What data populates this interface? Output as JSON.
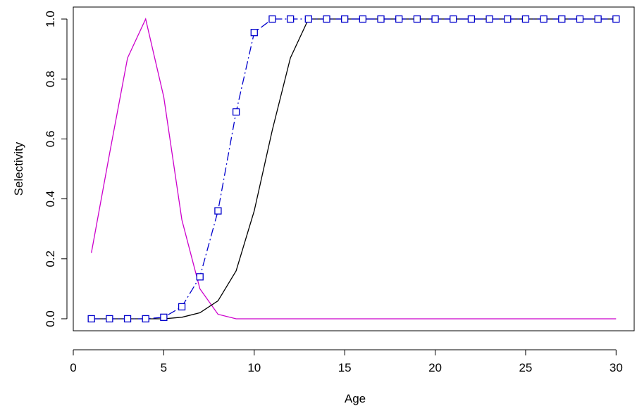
{
  "chart_data": {
    "type": "line",
    "xlabel": "Age",
    "ylabel": "Selectivity",
    "xlim": [
      0,
      31
    ],
    "ylim": [
      -0.04,
      1.04
    ],
    "x_ticks": [
      0,
      5,
      10,
      15,
      20,
      25,
      30
    ],
    "y_ticks": [
      0.0,
      0.2,
      0.4,
      0.6,
      0.8,
      1.0
    ],
    "x_tick_labels": [
      "0",
      "5",
      "10",
      "15",
      "20",
      "25",
      "30"
    ],
    "y_tick_labels": [
      "0.0",
      "0.2",
      "0.4",
      "0.6",
      "0.8",
      "1.0"
    ],
    "grid": false,
    "legend": "none",
    "x": [
      1,
      2,
      3,
      4,
      5,
      6,
      7,
      8,
      9,
      10,
      11,
      12,
      13,
      14,
      15,
      16,
      17,
      18,
      19,
      20,
      21,
      22,
      23,
      24,
      25,
      26,
      27,
      28,
      29,
      30
    ],
    "series": [
      {
        "color": "#cc00cc",
        "style": "line",
        "values": [
          0.22,
          0.55,
          0.87,
          1.0,
          0.74,
          0.33,
          0.1,
          0.015,
          0.0,
          0.0,
          0.0,
          0.0,
          0.0,
          0.0,
          0.0,
          0.0,
          0.0,
          0.0,
          0.0,
          0.0,
          0.0,
          0.0,
          0.0,
          0.0,
          0.0,
          0.0,
          0.0,
          0.0,
          0.0,
          0.0
        ]
      },
      {
        "color": "#000000",
        "style": "line",
        "values": [
          0.0,
          0.0,
          0.0,
          0.0,
          0.0,
          0.005,
          0.02,
          0.06,
          0.16,
          0.36,
          0.63,
          0.87,
          1.0,
          1.0,
          1.0,
          1.0,
          1.0,
          1.0,
          1.0,
          1.0,
          1.0,
          1.0,
          1.0,
          1.0,
          1.0,
          1.0,
          1.0,
          1.0,
          1.0,
          1.0
        ]
      },
      {
        "color": "#0000cc",
        "style": "line-dashdot-squares",
        "values": [
          0.0,
          0.0,
          0.0,
          0.0,
          0.005,
          0.04,
          0.14,
          0.36,
          0.69,
          0.955,
          1.0,
          1.0,
          1.0,
          1.0,
          1.0,
          1.0,
          1.0,
          1.0,
          1.0,
          1.0,
          1.0,
          1.0,
          1.0,
          1.0,
          1.0,
          1.0,
          1.0,
          1.0,
          1.0,
          1.0
        ]
      }
    ]
  }
}
